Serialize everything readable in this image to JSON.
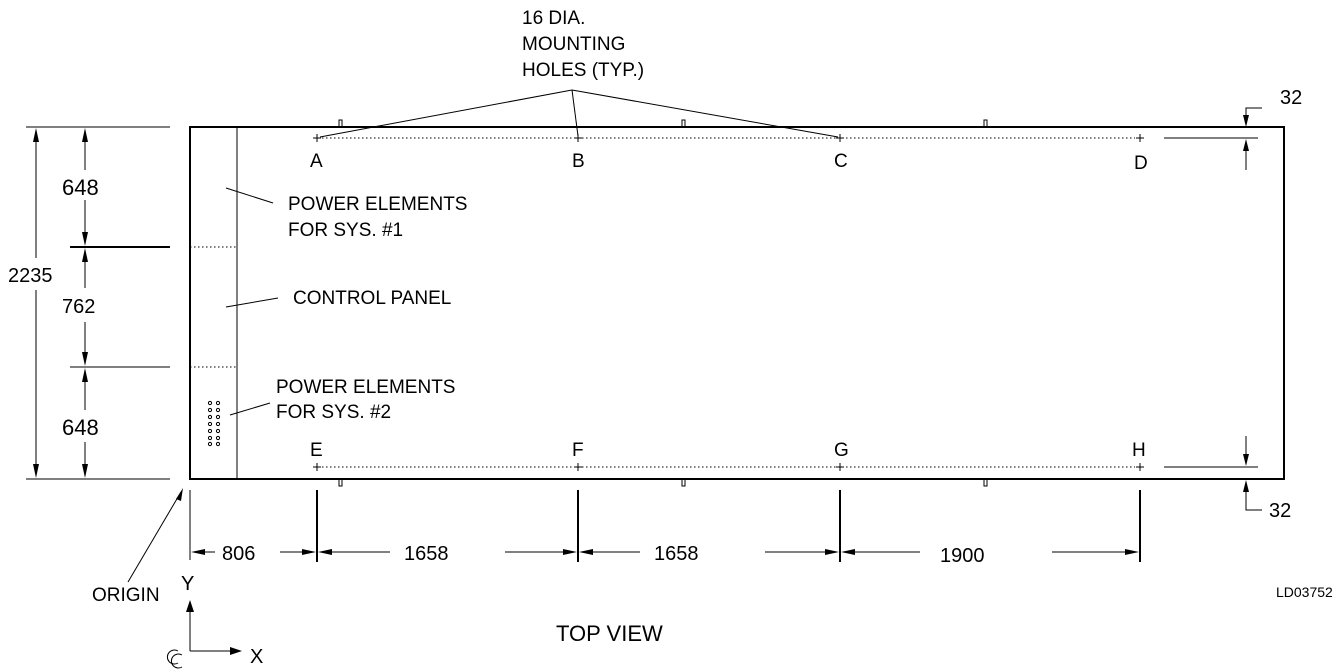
{
  "callout": {
    "line1": "16 DIA.",
    "line2": "MOUNTING",
    "line3": "HOLES (TYP.)"
  },
  "holes": {
    "top": [
      "A",
      "B",
      "C",
      "D"
    ],
    "bottom": [
      "E",
      "F",
      "G",
      "H"
    ]
  },
  "labels": {
    "power1_line1": "POWER ELEMENTS",
    "power1_line2": "FOR SYS. #1",
    "control_panel": "CONTROL PANEL",
    "power2_line1": "POWER ELEMENTS",
    "power2_line2": "FOR SYS. #2",
    "origin": "ORIGIN",
    "view": "TOP VIEW",
    "drawing_id": "LD03752",
    "axis_y": "Y",
    "axis_x": "X"
  },
  "dimensions": {
    "overall_depth": "2235",
    "seg_top": "648",
    "seg_mid": "762",
    "seg_bottom": "648",
    "offset_top": "32",
    "offset_bottom": "32",
    "x_first": "806",
    "x_ab": "1658",
    "x_bc": "1658",
    "x_cd": "1900"
  }
}
